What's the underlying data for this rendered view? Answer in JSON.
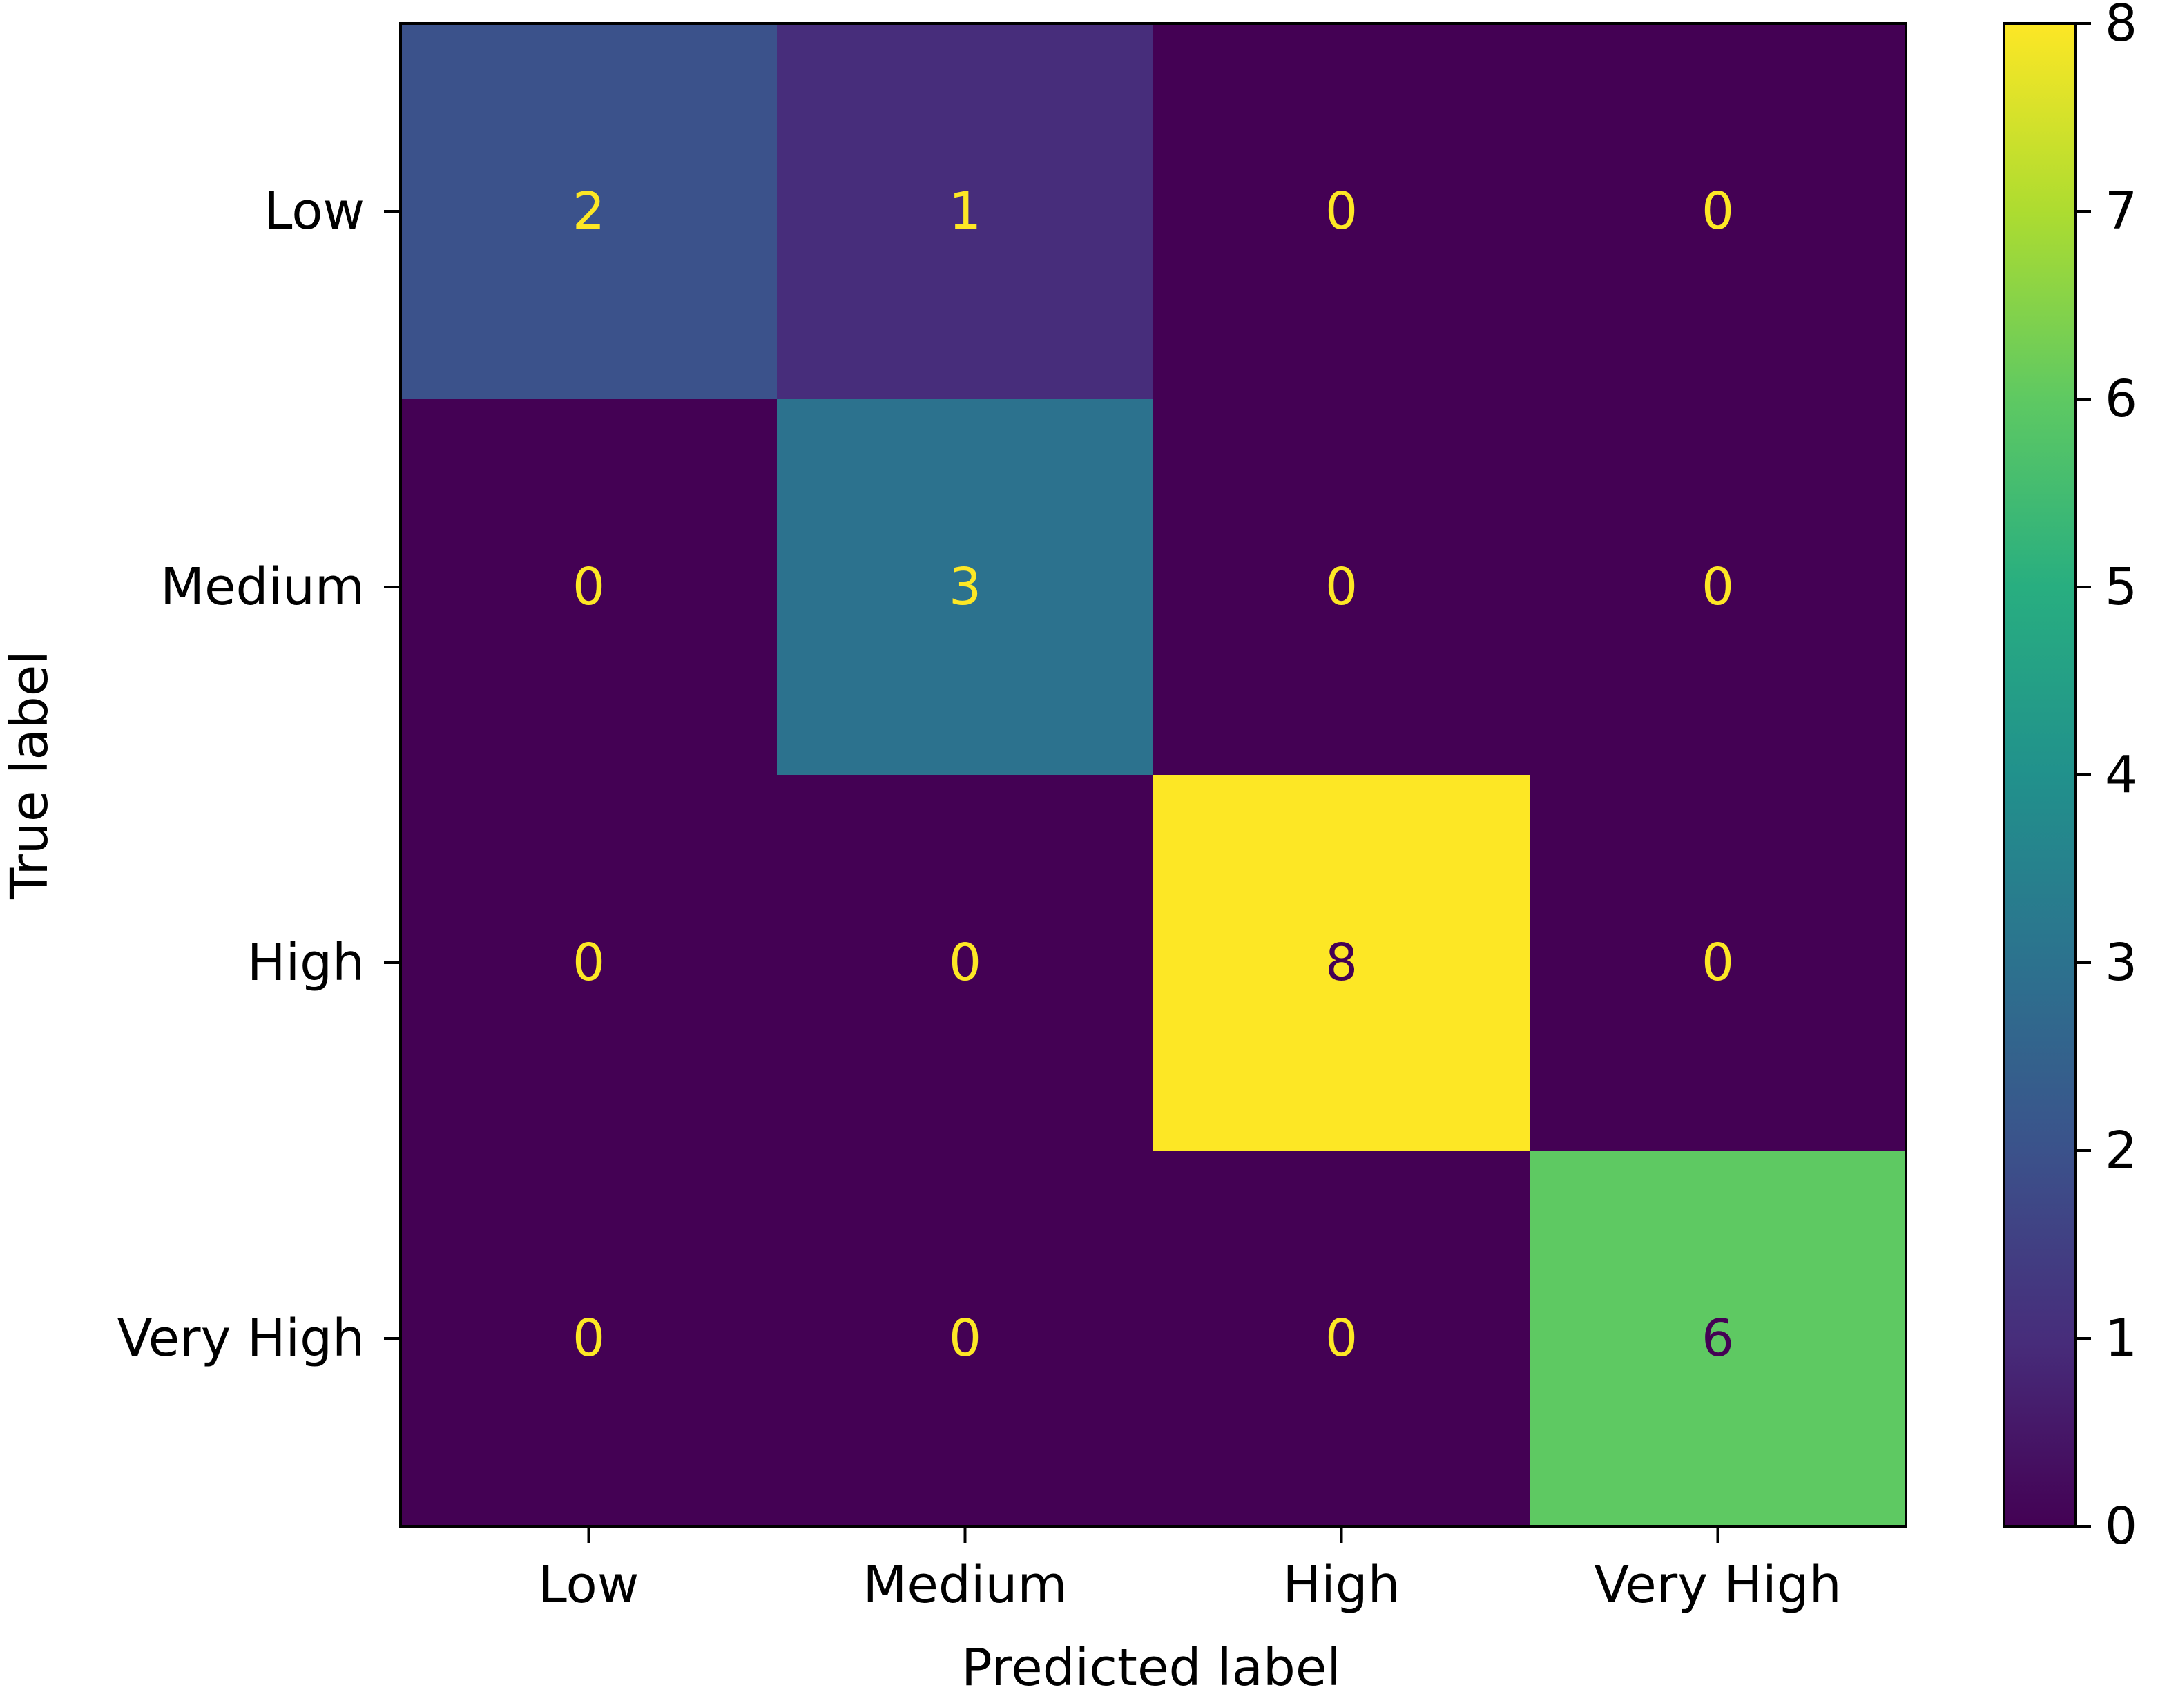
{
  "chart_data": {
    "type": "heatmap",
    "title": "",
    "xlabel": "Predicted label",
    "ylabel": "True label",
    "x_categories": [
      "Low",
      "Medium",
      "High",
      "Very High"
    ],
    "y_categories": [
      "Low",
      "Medium",
      "High",
      "Very High"
    ],
    "values": [
      [
        2,
        1,
        0,
        0
      ],
      [
        0,
        3,
        0,
        0
      ],
      [
        0,
        0,
        8,
        0
      ],
      [
        0,
        0,
        0,
        6
      ]
    ],
    "colormap": "viridis",
    "color_range": [
      0,
      8
    ],
    "colorbar": {
      "ticks": [
        0,
        1,
        2,
        3,
        4,
        5,
        6,
        7,
        8
      ],
      "tick_labels": [
        "0",
        "1",
        "2",
        "3",
        "4",
        "5",
        "6",
        "7",
        "8"
      ]
    },
    "grid": false,
    "text_colors": {
      "on_dark": "#fde725",
      "on_light": "#440154"
    }
  }
}
